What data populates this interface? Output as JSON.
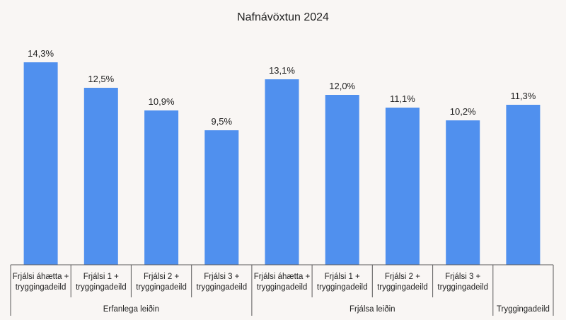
{
  "chart_data": {
    "type": "bar",
    "title": "Nafnávöxtun 2024",
    "categories": [
      [
        "Frjálsi áhætta +",
        "tryggingadeild"
      ],
      [
        "Frjálsi 1 +",
        "tryggingadeild"
      ],
      [
        "Frjálsi 2 +",
        "tryggingadeild"
      ],
      [
        "Frjálsi 3 +",
        "tryggingadeild"
      ],
      [
        "Frjálsi áhætta +",
        "tryggingadeild"
      ],
      [
        "Frjálsi 1 +",
        "tryggingadeild"
      ],
      [
        "Frjálsi 2 +",
        "tryggingadeild"
      ],
      [
        "Frjálsi 3 +",
        "tryggingadeild"
      ],
      [
        "",
        ""
      ]
    ],
    "groups": [
      {
        "label": "Erfanlega leiðin",
        "count": 4
      },
      {
        "label": "Frjálsa leiðin",
        "count": 4
      },
      {
        "label": "Tryggingadeild",
        "count": 1
      }
    ],
    "values": [
      14.3,
      12.5,
      10.9,
      9.5,
      13.1,
      12.0,
      11.1,
      10.2,
      11.3
    ],
    "data_labels": [
      "14,3%",
      "12,5%",
      "10,9%",
      "9,5%",
      "13,1%",
      "12,0%",
      "11,1%",
      "10,2%",
      "11,3%"
    ],
    "ylim": [
      0,
      16.7
    ],
    "bar_color": "#5090ee",
    "grid": false
  }
}
